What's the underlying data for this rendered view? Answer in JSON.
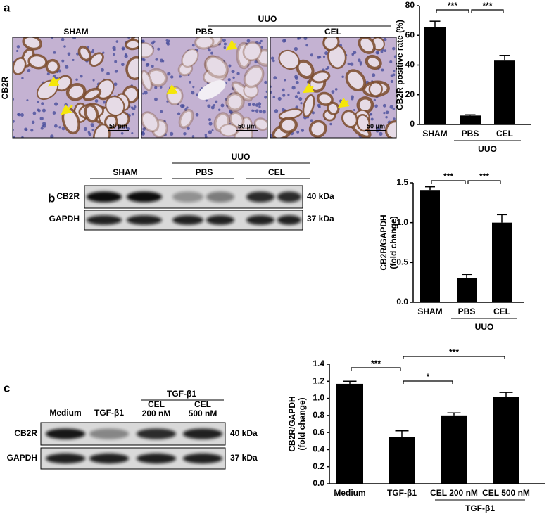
{
  "figure": {
    "panels": [
      "a",
      "b",
      "c"
    ],
    "a": {
      "row_label": "CB2R",
      "images": [
        "SHAM",
        "PBS",
        "CEL"
      ],
      "group": "UUO",
      "scale_bar": "50 μm"
    },
    "b": {
      "lanes": [
        "SHAM",
        "PBS",
        "CEL"
      ],
      "group": "UUO",
      "rows": [
        "CB2R",
        "GAPDH"
      ],
      "sizes": [
        "40 kDa",
        "37 kDa"
      ]
    },
    "c": {
      "lanes": [
        [
          "Medium"
        ],
        [
          "TGF-β1"
        ],
        [
          "CEL",
          "200 nM"
        ],
        [
          "CEL",
          "500 nM"
        ]
      ],
      "group": "TGF-β1",
      "rows": [
        "CB2R",
        "GAPDH"
      ],
      "sizes": [
        "40 kDa",
        "37 kDa"
      ]
    }
  },
  "chart_data": [
    {
      "type": "bar",
      "ylabel": [
        "CB2R positive rate (%)"
      ],
      "categories": [
        "SHAM",
        "PBS",
        "CEL"
      ],
      "values": [
        65.5,
        6,
        43
      ],
      "errors": [
        4,
        0.5,
        3.5
      ],
      "color": "#000000",
      "ylim": [
        0,
        80
      ],
      "yticks": [
        0,
        20,
        40,
        60,
        80
      ],
      "group": {
        "label": "UUO",
        "categories": [
          1,
          2
        ]
      },
      "significance": [
        {
          "label": "***",
          "pair": [
            0,
            1
          ]
        },
        {
          "label": "***",
          "pair": [
            1,
            2
          ]
        }
      ]
    },
    {
      "type": "bar",
      "ylabel": [
        "CB2R/GAPDH",
        "(fold change)"
      ],
      "categories": [
        "SHAM",
        "PBS",
        "CEL"
      ],
      "values": [
        1.41,
        0.3,
        1.0
      ],
      "errors": [
        0.04,
        0.05,
        0.1
      ],
      "color": "#000000",
      "ylim": [
        0,
        1.5
      ],
      "yticks": [
        {
          "value": 0,
          "label": "0.0"
        },
        0.5,
        {
          "value": 1,
          "label": "1.0"
        },
        1.5
      ],
      "group": {
        "label": "UUO",
        "categories": [
          1,
          2
        ]
      },
      "significance": [
        {
          "label": "***",
          "pair": [
            0,
            1
          ]
        },
        {
          "label": "***",
          "pair": [
            1,
            2
          ]
        }
      ]
    },
    {
      "type": "bar",
      "ylabel": [
        "CB2R/GAPDH",
        "(fold change)"
      ],
      "categories": [
        "Medium",
        "TGF-β1",
        "CEL 200 nM",
        "CEL 500 nM"
      ],
      "values": [
        1.17,
        0.55,
        0.8,
        1.02
      ],
      "errors": [
        0.03,
        0.07,
        0.03,
        0.05
      ],
      "color": "#000000",
      "ylim": [
        0,
        1.4
      ],
      "yticks": [
        {
          "value": 0,
          "label": "0.0"
        },
        0.2,
        0.4,
        0.6,
        0.8,
        {
          "value": 1,
          "label": "1.0"
        },
        1.2,
        1.4
      ],
      "group": {
        "label": "TGF-β1",
        "categories": [
          2,
          3
        ]
      },
      "significance": [
        {
          "label": "***",
          "pair": [
            0,
            1
          ]
        },
        {
          "label": "*",
          "pair": [
            1,
            2
          ]
        },
        {
          "label": "***",
          "pair": [
            1,
            3
          ]
        }
      ]
    }
  ]
}
